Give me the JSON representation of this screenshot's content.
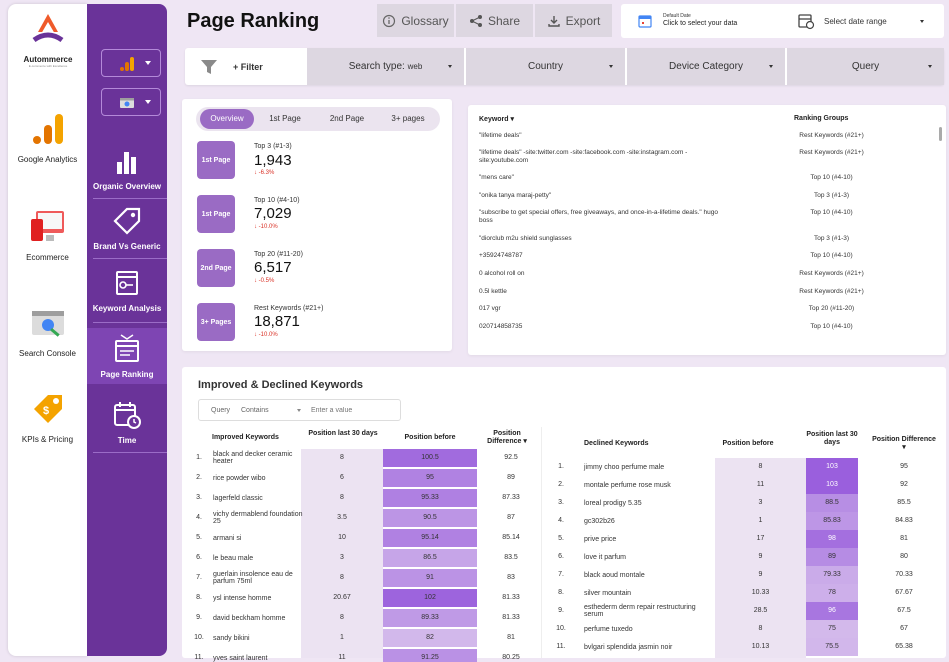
{
  "brand": {
    "name": "Autommerce",
    "tagline": "E-commerce with Excellence"
  },
  "rail": {
    "items": [
      {
        "label": "Google Analytics",
        "icon": "google-analytics-icon"
      },
      {
        "label": "Ecommerce",
        "icon": "ecommerce-icon"
      },
      {
        "label": "Search Console",
        "icon": "search-console-icon"
      },
      {
        "label": "KPIs & Pricing",
        "icon": "price-tag-icon"
      }
    ]
  },
  "nav": {
    "items": [
      {
        "label": "Organic Overview",
        "icon": "bar-chart-icon"
      },
      {
        "label": "Brand Vs Generic",
        "icon": "tag-icon"
      },
      {
        "label": "Keyword Analysis",
        "icon": "keyword-window-icon"
      },
      {
        "label": "Page Ranking",
        "icon": "page-ranking-icon",
        "active": true
      },
      {
        "label": "Time",
        "icon": "calendar-clock-icon"
      }
    ]
  },
  "header": {
    "title": "Page Ranking",
    "glossary": "Glossary",
    "share": "Share",
    "export": "Export",
    "date_line1": "Default Date",
    "date_line2": "Click to select your data",
    "date_range": "Select date range"
  },
  "filters": {
    "add_filter": "+ Filter",
    "search_type_label": "Search type:",
    "search_type_value": "web",
    "country": "Country",
    "device": "Device Category",
    "query": "Query"
  },
  "overview": {
    "tabs": [
      "Overview",
      "1st Page",
      "2nd Page",
      "3+ pages"
    ],
    "kpis": [
      {
        "badge": "1st Page",
        "label": "Top 3 (#1-3)",
        "value": "1,943",
        "delta": "-6.3%"
      },
      {
        "badge": "1st Page",
        "label": "Top 10 (#4-10)",
        "value": "7,029",
        "delta": "-10.0%"
      },
      {
        "badge": "2nd Page",
        "label": "Top 20 (#11-20)",
        "value": "6,517",
        "delta": "-0.5%"
      },
      {
        "badge": "3+ Pages",
        "label": "Rest Keywords (#21+)",
        "value": "18,871",
        "delta": "-10.0%"
      }
    ]
  },
  "keyword_table": {
    "headers": {
      "keyword": "Keyword",
      "groups": "Ranking Groups"
    },
    "rows": [
      {
        "keyword": "\"lifetime deals\"",
        "group": "Rest Keywords (#21+)"
      },
      {
        "keyword": "\"lifetime deals\" -site:twitter.com -site:facebook.com -site:instagram.com -site:youtube.com",
        "group": "Rest Keywords (#21+)"
      },
      {
        "keyword": "\"mens care\"",
        "group": "Top 10 (#4-10)"
      },
      {
        "keyword": "\"onika tanya maraj-petty\"",
        "group": "Top 3 (#1-3)"
      },
      {
        "keyword": "\"subscribe to get special offers, free giveaways, and once-in-a-lifetime deals.\" hugo boss",
        "group": "Top 10 (#4-10)"
      },
      {
        "keyword": "\"diorclub m2u shield sunglasses",
        "group": "Top 3 (#1-3)"
      },
      {
        "keyword": "+35924748787",
        "group": "Top 10 (#4-10)"
      },
      {
        "keyword": "0 alcohol roll on",
        "group": "Rest Keywords (#21+)"
      },
      {
        "keyword": "0.5l kettle",
        "group": "Rest Keywords (#21+)"
      },
      {
        "keyword": "017 vgr",
        "group": "Top 20 (#11-20)"
      },
      {
        "keyword": "020714858735",
        "group": "Top 10 (#4-10)"
      }
    ]
  },
  "movers": {
    "title": "Improved & Declined Keywords",
    "query_filter": {
      "field": "Query",
      "operator": "Contains",
      "placeholder": "Enter a value"
    },
    "improved": {
      "headers": {
        "keyword": "Improved Keywords",
        "last30": "Position last 30 days",
        "before": "Position before",
        "diff": "Position Difference"
      },
      "rows": [
        {
          "n": "1.",
          "kw": "black and decker ceramic heater",
          "last30": "8",
          "before": "100.5",
          "diff": "92.5"
        },
        {
          "n": "2.",
          "kw": "rice powder wibo",
          "last30": "6",
          "before": "95",
          "diff": "89"
        },
        {
          "n": "3.",
          "kw": "lagerfeld classic",
          "last30": "8",
          "before": "95.33",
          "diff": "87.33"
        },
        {
          "n": "4.",
          "kw": "vichy dermablend foundation 25",
          "last30": "3.5",
          "before": "90.5",
          "diff": "87"
        },
        {
          "n": "5.",
          "kw": "armani si",
          "last30": "10",
          "before": "95.14",
          "diff": "85.14"
        },
        {
          "n": "6.",
          "kw": "le beau male",
          "last30": "3",
          "before": "86.5",
          "diff": "83.5"
        },
        {
          "n": "7.",
          "kw": "guerlain insolence eau de parfum 75ml",
          "last30": "8",
          "before": "91",
          "diff": "83"
        },
        {
          "n": "8.",
          "kw": "ysl intense homme",
          "last30": "20.67",
          "before": "102",
          "diff": "81.33"
        },
        {
          "n": "9.",
          "kw": "david beckham homme",
          "last30": "8",
          "before": "89.33",
          "diff": "81.33"
        },
        {
          "n": "10.",
          "kw": "sandy bikini",
          "last30": "1",
          "before": "82",
          "diff": "81"
        },
        {
          "n": "11.",
          "kw": "yves saint laurent",
          "last30": "11",
          "before": "91.25",
          "diff": "80.25"
        }
      ]
    },
    "declined": {
      "headers": {
        "keyword": "Declined Keywords",
        "before": "Position before",
        "last30": "Position last 30 days",
        "diff": "Position Difference"
      },
      "rows": [
        {
          "n": "1.",
          "kw": "jimmy choo perfume male",
          "before": "8",
          "last30": "103",
          "diff": "95"
        },
        {
          "n": "2.",
          "kw": "montale perfume rose musk",
          "before": "11",
          "last30": "103",
          "diff": "92"
        },
        {
          "n": "3.",
          "kw": "loreal prodigy 5.35",
          "before": "3",
          "last30": "88.5",
          "diff": "85.5"
        },
        {
          "n": "4.",
          "kw": "gc302b26",
          "before": "1",
          "last30": "85.83",
          "diff": "84.83"
        },
        {
          "n": "5.",
          "kw": "prive price",
          "before": "17",
          "last30": "98",
          "diff": "81"
        },
        {
          "n": "6.",
          "kw": "love it parfum",
          "before": "9",
          "last30": "89",
          "diff": "80"
        },
        {
          "n": "7.",
          "kw": "black aoud montale",
          "before": "9",
          "last30": "79.33",
          "diff": "70.33"
        },
        {
          "n": "8.",
          "kw": "silver mountain",
          "before": "10.33",
          "last30": "78",
          "diff": "67.67"
        },
        {
          "n": "9.",
          "kw": "esthederm derm repair restructuring serum",
          "before": "28.5",
          "last30": "96",
          "diff": "67.5"
        },
        {
          "n": "10.",
          "kw": "perfume tuxedo",
          "before": "8",
          "last30": "75",
          "diff": "67"
        },
        {
          "n": "11.",
          "kw": "bvlgari splendida jasmin noir",
          "before": "10.13",
          "last30": "75.5",
          "diff": "65.38"
        }
      ]
    }
  },
  "colors": {
    "nav": "#6a3399",
    "accent": "#9a6bc4",
    "delta": "#d93025"
  }
}
